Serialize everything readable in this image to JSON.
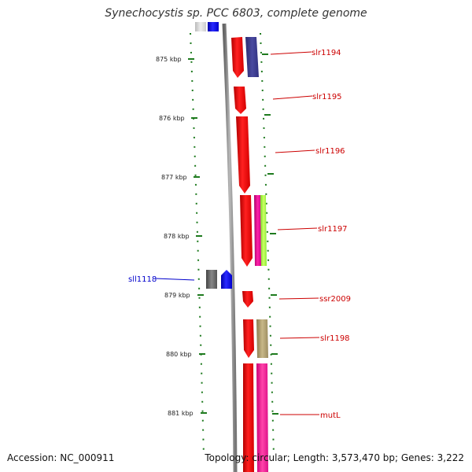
{
  "title": "Synechocystis sp. PCC 6803, complete genome",
  "accession": "Accession: NC_000911",
  "summary": "Topology: circular; Length: 3,573,470 bp; Genes: 3,222",
  "ticks": [
    "875 kbp",
    "876 kbp",
    "877 kbp",
    "878 kbp",
    "879 kbp",
    "880 kbp",
    "881 kbp"
  ],
  "genes_forward": [
    {
      "label": "slr1194",
      "color": "#cc0000"
    },
    {
      "label": "slr1195",
      "color": "#cc0000"
    },
    {
      "label": "slr1196",
      "color": "#cc0000"
    },
    {
      "label": "slr1197",
      "color": "#cc0000"
    },
    {
      "label": "ssr2009",
      "color": "#cc0000"
    },
    {
      "label": "slr1198",
      "color": "#cc0000"
    },
    {
      "label": "mutL",
      "color": "#cc0000"
    }
  ],
  "genes_reverse": [
    {
      "label": "sll1118",
      "color": "#0000cc"
    }
  ],
  "colors": {
    "forward_cds": "#ff0000",
    "reverse_cds": "#0000ff",
    "backbone": "#888888",
    "ticks": "#007700",
    "cog_purple": "#3c3c8c",
    "cog_magenta": "#e6007e",
    "cog_green": "#99ff33",
    "cog_tan": "#b0a070",
    "cog_pink": "#ff33aa",
    "cog_gray": "#666666"
  }
}
